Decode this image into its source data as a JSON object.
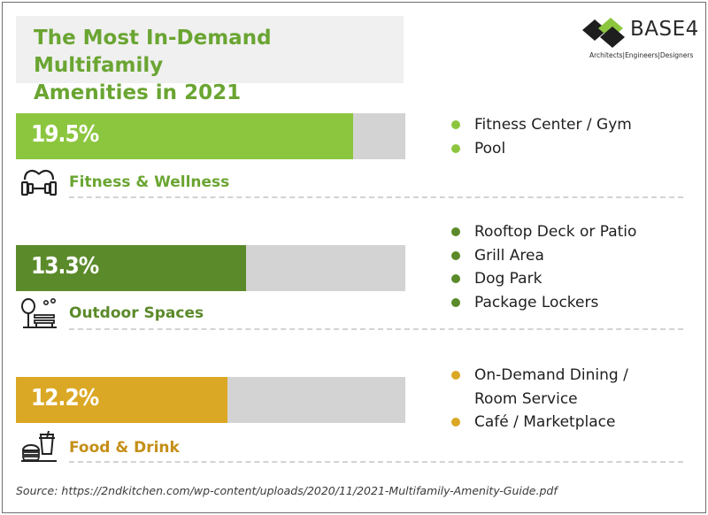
{
  "title": "The Most In-Demand Multifamily\nAmenities in 2021",
  "logo": {
    "name": "BASE4",
    "tagline": "Architects|Engineers|Designers"
  },
  "colors": {
    "fitness": "#8cc63f",
    "outdoor": "#5b8a2a",
    "food": "#dba825",
    "fitness_label": "#6aa532",
    "outdoor_label": "#5b8a2a",
    "food_label": "#c58f18",
    "track": "#d3d3d3"
  },
  "chart_data": {
    "type": "bar",
    "orientation": "horizontal",
    "title": "The Most In-Demand Multifamily Amenities in 2021",
    "categories": [
      "Fitness & Wellness",
      "Outdoor Spaces",
      "Food & Drink"
    ],
    "values": [
      19.5,
      13.3,
      12.2
    ],
    "value_labels": [
      "19.5%",
      "13.3%",
      "12.2%"
    ],
    "unit": "%",
    "grid": false
  },
  "categories": [
    {
      "label": "Fitness & Wellness",
      "value_label": "19.5%",
      "icon": "dumbbell-icon",
      "amenities": [
        "Fitness Center / Gym",
        "Pool"
      ]
    },
    {
      "label": "Outdoor Spaces",
      "value_label": "13.3%",
      "icon": "park-bench-icon",
      "amenities": [
        "Rooftop Deck or Patio",
        "Grill Area",
        "Dog Park",
        "Package Lockers"
      ]
    },
    {
      "label": "Food & Drink",
      "value_label": "12.2%",
      "icon": "burger-drink-icon",
      "amenities": [
        "On-Demand Dining /\nRoom Service",
        "Café / Marketplace"
      ]
    }
  ],
  "source": "Source: https://2ndkitchen.com/wp-content/uploads/2020/11/2021-Multifamily-Amenity-Guide.pdf"
}
